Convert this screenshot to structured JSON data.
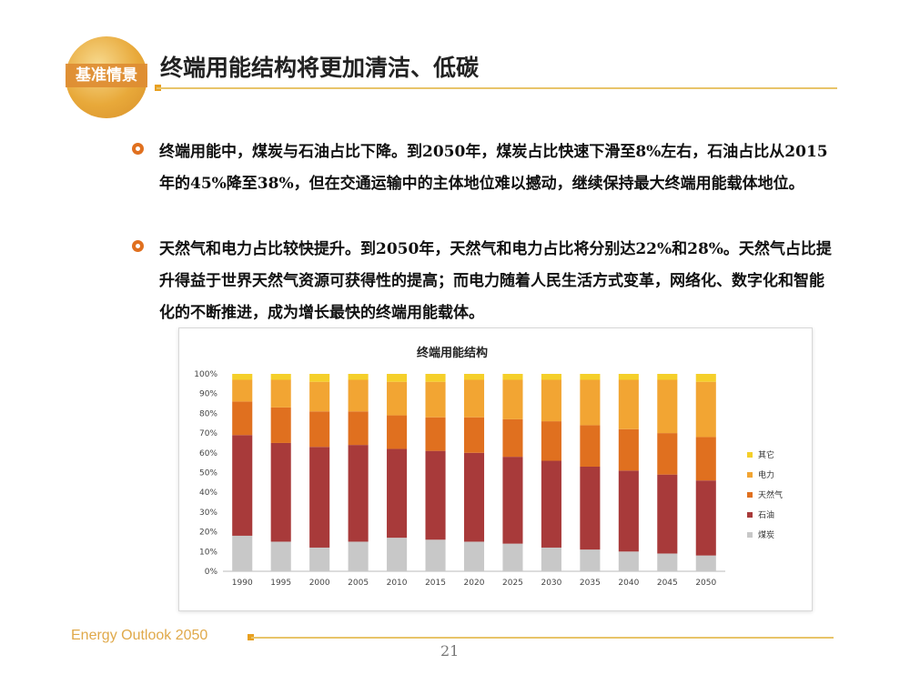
{
  "header": {
    "logo_text": "基准情景",
    "title": "终端用能结构将更加清洁、低碳"
  },
  "bullets": [
    "终端用能中，煤炭与石油占比下降。到2050年，煤炭占比快速下滑至8%左右，石油占比从2015年的45%降至38%，但在交通运输中的主体地位难以撼动，继续保持最大终端用能载体地位。",
    "天然气和电力占比较快提升。到2050年，天然气和电力占比将分别达22%和28%。天然气占比提升得益于世界天然气资源可获得性的提高；而电力随着人民生活方式变革，网络化、数字化和智能化的不断推进，成为增长最快的终端用能载体。"
  ],
  "chart_data": {
    "type": "bar",
    "stacked": true,
    "percent": true,
    "title": "终端用能结构",
    "categories": [
      "1990",
      "1995",
      "2000",
      "2005",
      "2010",
      "2015",
      "2020",
      "2025",
      "2030",
      "2035",
      "2040",
      "2045",
      "2050"
    ],
    "y_ticks": [
      "0%",
      "10%",
      "20%",
      "30%",
      "40%",
      "50%",
      "60%",
      "70%",
      "80%",
      "90%",
      "100%"
    ],
    "ylim": [
      0,
      100
    ],
    "legend_position": "right",
    "series": [
      {
        "name": "煤炭",
        "color": "#c8c8c8",
        "values": [
          18,
          15,
          12,
          15,
          17,
          16,
          15,
          14,
          12,
          11,
          10,
          9,
          8
        ]
      },
      {
        "name": "石油",
        "color": "#a83a3a",
        "values": [
          51,
          50,
          51,
          49,
          45,
          45,
          45,
          44,
          44,
          42,
          41,
          40,
          38
        ]
      },
      {
        "name": "天然气",
        "color": "#e0701f",
        "values": [
          17,
          18,
          18,
          17,
          17,
          17,
          18,
          19,
          20,
          21,
          21,
          21,
          22
        ]
      },
      {
        "name": "电力",
        "color": "#f2a533",
        "values": [
          11,
          14,
          15,
          16,
          17,
          18,
          19,
          20,
          21,
          23,
          25,
          27,
          28
        ]
      },
      {
        "name": "其它",
        "color": "#f5cf2a",
        "values": [
          3,
          3,
          4,
          3,
          4,
          4,
          3,
          3,
          3,
          3,
          3,
          3,
          4
        ]
      }
    ]
  },
  "footer": {
    "label": "Energy Outlook 2050",
    "page": "21"
  }
}
